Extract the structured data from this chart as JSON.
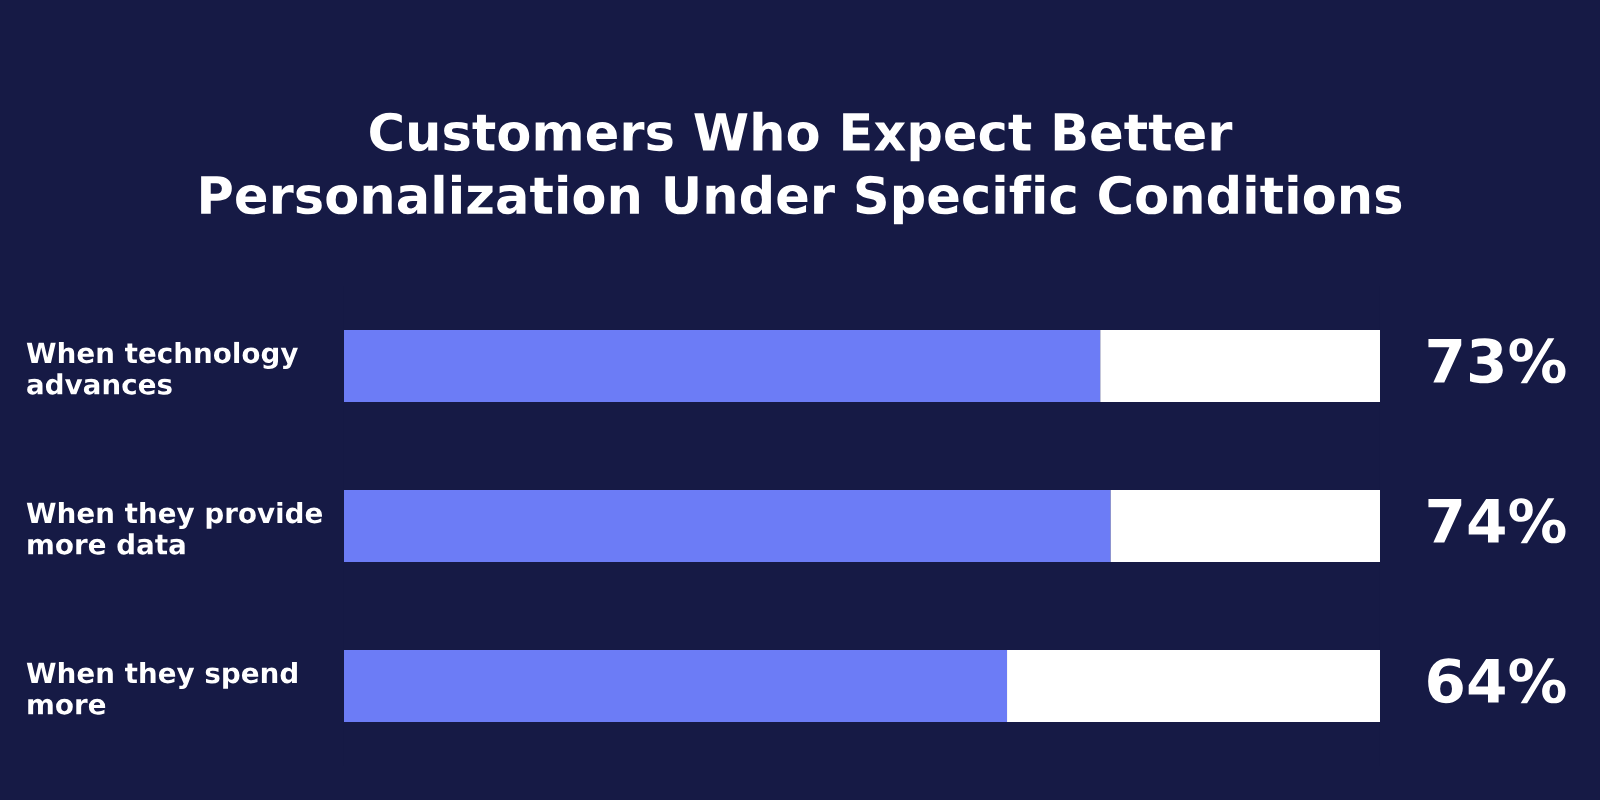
{
  "chart_data": {
    "type": "bar",
    "orientation": "horizontal",
    "stacked": true,
    "title": "Customers Who Expect Better\nPersonalization Under Specific Conditions",
    "categories": [
      "When technology\nadvances",
      "When they provide\nmore data",
      "When they spend\nmore"
    ],
    "series": [
      {
        "color": "#6c7cf6",
        "values": [
          73,
          74,
          64
        ],
        "value_labels": [
          "73%",
          "74%",
          "64%"
        ]
      },
      {
        "color": "#ffffff",
        "values": [
          27,
          26,
          36
        ]
      }
    ],
    "xlim": [
      0,
      100
    ],
    "tick_labels": "y",
    "grid": false
  }
}
